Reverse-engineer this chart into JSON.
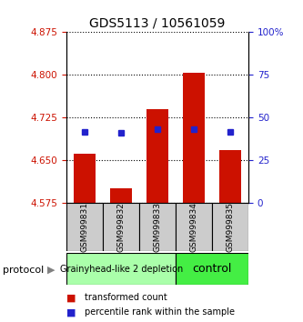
{
  "title": "GDS5113 / 10561059",
  "samples": [
    "GSM999831",
    "GSM999832",
    "GSM999833",
    "GSM999834",
    "GSM999835"
  ],
  "bar_bottom": 4.575,
  "bar_tops": [
    4.662,
    4.6,
    4.74,
    4.803,
    4.668
  ],
  "blue_values_left": [
    4.7,
    4.698,
    4.705,
    4.705,
    4.7
  ],
  "ylim_left": [
    4.575,
    4.875
  ],
  "yticks_left": [
    4.575,
    4.65,
    4.725,
    4.8,
    4.875
  ],
  "ylim_right": [
    0,
    100
  ],
  "yticks_right": [
    0,
    25,
    50,
    75,
    100
  ],
  "ytick_right_labels": [
    "0",
    "25",
    "50",
    "75",
    "100%"
  ],
  "bar_color": "#CC1100",
  "blue_color": "#2222CC",
  "grid_color": "#000000",
  "title_fontsize": 10,
  "left_tick_color": "#CC1100",
  "right_tick_color": "#2222CC",
  "group0_label": "Grainyhead-like 2 depletion",
  "group0_color": "#aaffaa",
  "group0_text_size": 7,
  "group1_label": "control",
  "group1_color": "#44ee44",
  "group1_text_size": 9,
  "protocol_label": "protocol",
  "legend_red_label": "transformed count",
  "legend_blue_label": "percentile rank within the sample"
}
